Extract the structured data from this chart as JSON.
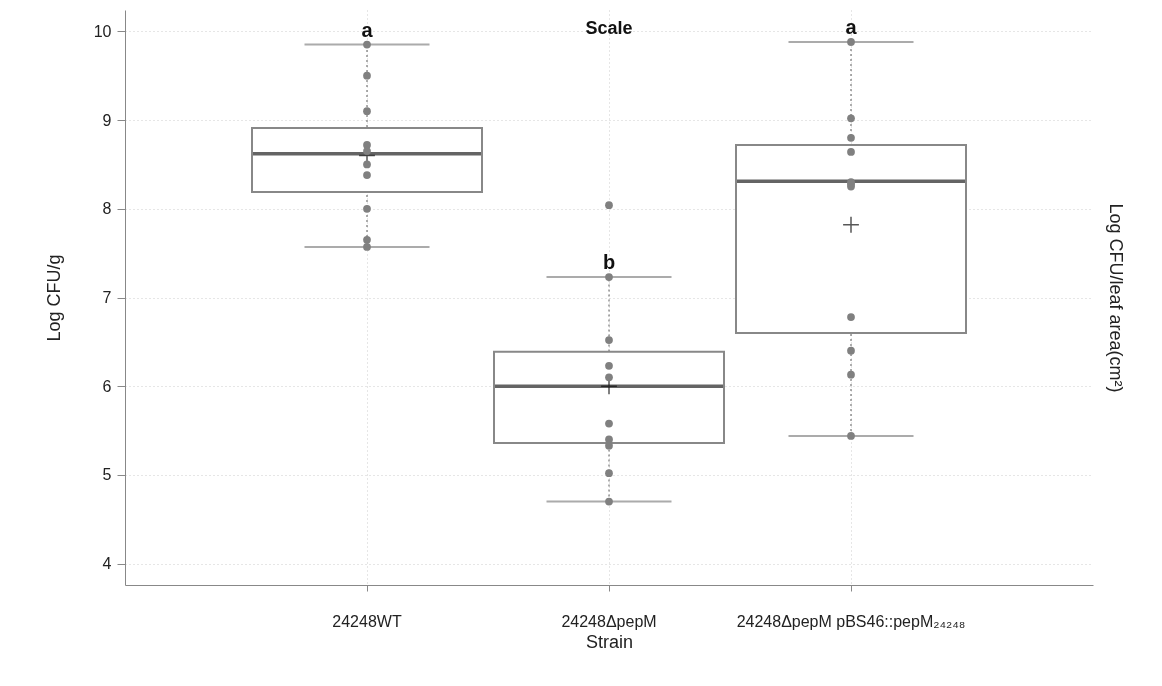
{
  "chart_data": {
    "type": "box",
    "title": "Scale",
    "xlabel": "Strain",
    "ylabel": "Log CFU/g",
    "y2label": "Log CFU/leaf area(cm²)",
    "categories": [
      "24248WT",
      "24248ΔpepM",
      "24248ΔpepM pBS46::pepM₂₄₂₄₈"
    ],
    "boxes": [
      {
        "low": 7.57,
        "q1": 8.19,
        "median": 8.62,
        "q3": 8.91,
        "high": 9.85,
        "mean": 8.6
      },
      {
        "low": 4.7,
        "q1": 5.36,
        "median": 6.0,
        "q3": 6.39,
        "high": 7.23,
        "mean": 6.0
      },
      {
        "low": 5.44,
        "q1": 6.6,
        "median": 8.31,
        "q3": 8.72,
        "high": 9.88,
        "mean": 7.82
      }
    ],
    "series": [
      {
        "type": "scatter",
        "color": "#808080",
        "marker": "circle",
        "x": [
          "24248WT",
          "24248WT",
          "24248WT",
          "24248WT",
          "24248WT",
          "24248WT",
          "24248WT",
          "24248WT",
          "24248WT",
          "24248WT",
          "24248ΔpepM",
          "24248ΔpepM",
          "24248ΔpepM",
          "24248ΔpepM",
          "24248ΔpepM",
          "24248ΔpepM",
          "24248ΔpepM",
          "24248ΔpepM",
          "24248ΔpepM",
          "24248ΔpepM",
          "24248ΔpepM pBS46::pepM₂₄₂₄₈",
          "24248ΔpepM pBS46::pepM₂₄₂₄₈",
          "24248ΔpepM pBS46::pepM₂₄₂₄₈",
          "24248ΔpepM pBS46::pepM₂₄₂₄₈",
          "24248ΔpepM pBS46::pepM₂₄₂₄₈",
          "24248ΔpepM pBS46::pepM₂₄₂₄₈",
          "24248ΔpepM pBS46::pepM₂₄₂₄₈",
          "24248ΔpepM pBS46::pepM₂₄₂₄₈",
          "24248ΔpepM pBS46::pepM₂₄₂₄₈",
          "24248ΔpepM pBS46::pepM₂₄₂₄₈",
          "24248ΔpepM pBS46::pepM₂₄₂₄₈"
        ],
        "values": [
          9.85,
          9.5,
          9.1,
          8.72,
          8.65,
          8.5,
          8.38,
          8.0,
          7.65,
          7.57,
          8.04,
          7.23,
          6.52,
          6.23,
          6.1,
          5.58,
          5.4,
          5.33,
          5.02,
          4.7,
          9.88,
          9.02,
          8.8,
          8.64,
          8.3,
          8.28,
          8.25,
          6.78,
          6.4,
          6.13,
          5.44
        ]
      }
    ],
    "annotations": [
      "a",
      "b",
      "a"
    ],
    "ylim": [
      3.76,
      10.24
    ],
    "yticks": [
      4,
      5,
      6,
      7,
      8,
      9,
      10
    ],
    "grid": true
  }
}
